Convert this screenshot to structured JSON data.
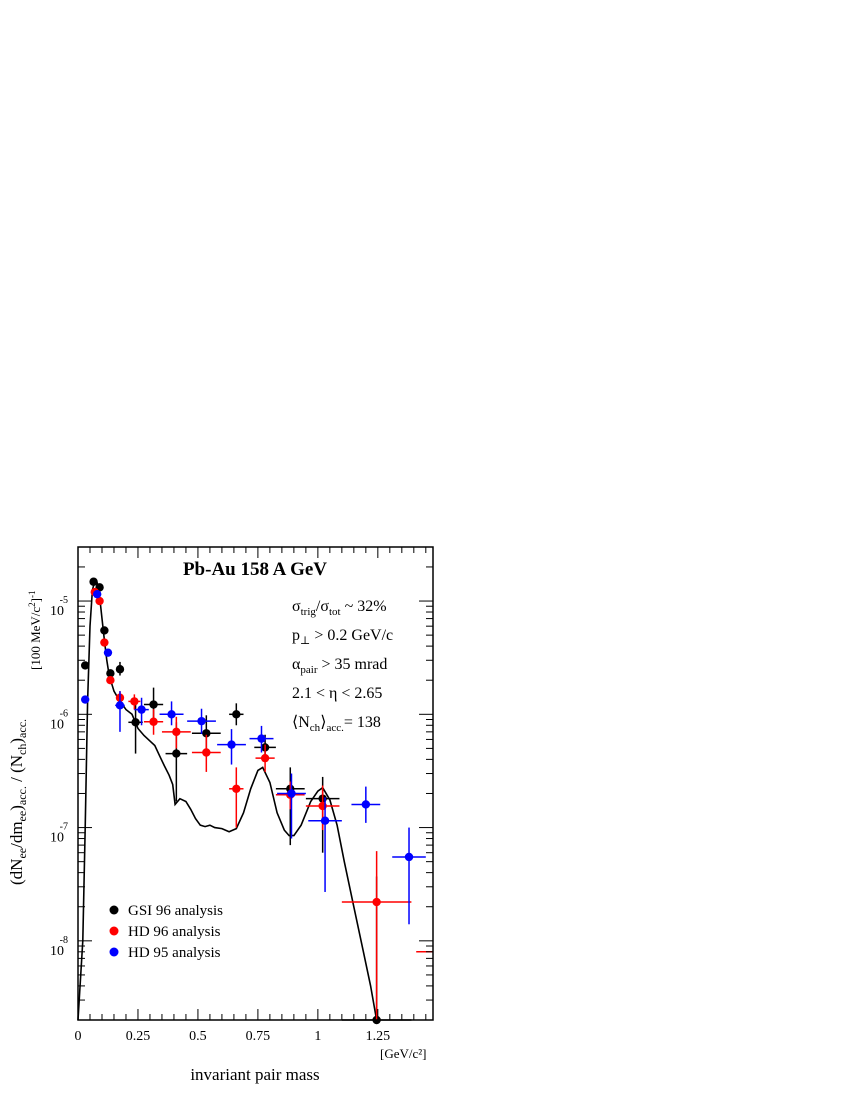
{
  "chart_data": {
    "type": "scatter",
    "title": "Pb-Au   158 A GeV",
    "xlabel": "invariant pair mass",
    "xunit": "[GeV/c²]",
    "ylabel_main": "(dN",
    "ylabel_parts": [
      "(dN",
      "ee",
      "/dm",
      "ee",
      ")",
      "acc.",
      " / (N",
      "ch",
      ")",
      "acc."
    ],
    "yunit_parts": [
      "[100 MeV/c",
      "2",
      "]",
      "-1"
    ],
    "xlim": [
      0,
      1.48
    ],
    "ylim": [
      2e-09,
      3e-05
    ],
    "yscale": "log",
    "xticks": [
      0,
      0.25,
      0.5,
      0.75,
      1,
      1.25
    ],
    "xtick_labels": [
      "0",
      "0.25",
      "0.5",
      "0.75",
      "1",
      "1.25"
    ],
    "ytick_labels": [
      {
        "base": "10",
        "exp": "-8",
        "value": 1e-08
      },
      {
        "base": "10",
        "exp": "-7",
        "value": 1e-07
      },
      {
        "base": "10",
        "exp": "-6",
        "value": 1e-06
      },
      {
        "base": "10",
        "exp": "-5",
        "value": 1e-05
      }
    ],
    "annotations": [
      {
        "parts": [
          [
            "σ",
            ""
          ],
          [
            "trig",
            "sub"
          ],
          [
            "/σ",
            ""
          ],
          [
            "tot",
            "sub"
          ],
          [
            " ~ 32%",
            ""
          ]
        ]
      },
      {
        "parts": [
          [
            "p",
            ""
          ],
          [
            "⊥",
            "sub"
          ],
          [
            " > 0.2 GeV/c",
            ""
          ]
        ]
      },
      {
        "parts": [
          [
            "α",
            ""
          ],
          [
            "pair",
            "sub"
          ],
          [
            " > 35 mrad",
            ""
          ]
        ]
      },
      {
        "parts": [
          [
            "2.1 < η < 2.65",
            ""
          ]
        ]
      },
      {
        "parts": [
          [
            "⟨N",
            ""
          ],
          [
            "ch",
            "sub"
          ],
          [
            "⟩",
            ""
          ],
          [
            "acc.",
            "sub"
          ],
          [
            "= 138",
            ""
          ]
        ]
      }
    ],
    "legend_position": "bottom-left",
    "series": [
      {
        "name": "GSI 96 analysis",
        "color": "#000000",
        "points": [
          {
            "x": 0.03,
            "y": 2.7e-06
          },
          {
            "x": 0.065,
            "y": 1.48e-05
          },
          {
            "x": 0.09,
            "y": 1.32e-05
          },
          {
            "x": 0.11,
            "y": 5.5e-06
          },
          {
            "x": 0.135,
            "y": 2.3e-06
          },
          {
            "x": 0.175,
            "y": 2.5e-06,
            "xerr": 0.015,
            "yerr": [
              3e-07,
              4e-07
            ]
          },
          {
            "x": 0.24,
            "y": 8.5e-07,
            "xerr": 0.03,
            "yerr": [
              4e-07,
              5e-07
            ]
          },
          {
            "x": 0.315,
            "y": 1.22e-06,
            "xerr": 0.04,
            "yerr": [
              4e-07,
              5e-07
            ]
          },
          {
            "x": 0.41,
            "y": 4.5e-07,
            "xerr": 0.045,
            "yerr": [
              2.8e-07,
              4e-07
            ]
          },
          {
            "x": 0.535,
            "y": 6.8e-07,
            "xerr": 0.06,
            "yerr": [
              2e-07,
              3e-07
            ]
          },
          {
            "x": 0.66,
            "y": 1e-06,
            "xerr": 0.03,
            "yerr": [
              2e-07,
              2.5e-07
            ]
          },
          {
            "x": 0.78,
            "y": 5.1e-07,
            "xerr": 0.045,
            "yerr": [
              1.2e-07,
              1.5e-07
            ]
          },
          {
            "x": 0.885,
            "y": 2.2e-07,
            "xerr": 0.06,
            "yerr": [
              1.5e-07,
              1.2e-07
            ]
          },
          {
            "x": 1.02,
            "y": 1.8e-07,
            "xerr": 0.07,
            "yerr": [
              1.2e-07,
              1e-07
            ]
          },
          {
            "x": 1.245,
            "y": 2e-09,
            "xerr": 0.145,
            "yerr": [
              0,
              3.5e-08
            ]
          }
        ]
      },
      {
        "name": "HD 96 analysis",
        "color": "#ff0000",
        "points": [
          {
            "x": 0.07,
            "y": 1.2e-05
          },
          {
            "x": 0.09,
            "y": 1e-05
          },
          {
            "x": 0.11,
            "y": 4.3e-06
          },
          {
            "x": 0.135,
            "y": 2e-06
          },
          {
            "x": 0.175,
            "y": 1.4e-06,
            "xerr": 0.015,
            "yerr": [
              2e-07,
              2e-07
            ]
          },
          {
            "x": 0.235,
            "y": 1.3e-06,
            "xerr": 0.025,
            "yerr": [
              2e-07,
              2e-07
            ]
          },
          {
            "x": 0.315,
            "y": 8.6e-07,
            "xerr": 0.04,
            "yerr": [
              2e-07,
              2.5e-07
            ]
          },
          {
            "x": 0.41,
            "y": 7e-07,
            "xerr": 0.06,
            "yerr": [
              2e-07,
              2.5e-07
            ]
          },
          {
            "x": 0.535,
            "y": 4.6e-07,
            "xerr": 0.06,
            "yerr": [
              1.5e-07,
              2e-07
            ]
          },
          {
            "x": 0.66,
            "y": 2.2e-07,
            "xerr": 0.03,
            "yerr": [
              1.2e-07,
              1.2e-07
            ]
          },
          {
            "x": 0.78,
            "y": 4.1e-07,
            "xerr": 0.04,
            "yerr": [
              1e-07,
              1.3e-07
            ]
          },
          {
            "x": 0.885,
            "y": 1.95e-07,
            "xerr": 0.06,
            "yerr": [
              5e-08,
              6e-08
            ]
          },
          {
            "x": 1.02,
            "y": 1.55e-07,
            "xerr": 0.07,
            "yerr": [
              6e-08,
              8e-08
            ]
          },
          {
            "x": 1.245,
            "y": 2.2e-08,
            "xerr": 0.145,
            "yerr": [
              2e-08,
              4e-08
            ]
          },
          {
            "x": 1.48,
            "y": 8e-09,
            "xerr": 0.07,
            "yerr": [
              0,
              0
            ]
          }
        ]
      },
      {
        "name": "HD 95 analysis",
        "color": "#0000ff",
        "points": [
          {
            "x": 0.03,
            "y": 1.35e-06,
            "xerr": 0.01
          },
          {
            "x": 0.08,
            "y": 1.15e-05
          },
          {
            "x": 0.125,
            "y": 3.5e-06
          },
          {
            "x": 0.175,
            "y": 1.2e-06,
            "xerr": 0.02,
            "yerr": [
              5e-07,
              4e-07
            ]
          },
          {
            "x": 0.265,
            "y": 1.1e-06,
            "xerr": 0.03,
            "yerr": [
              3e-07,
              3e-07
            ]
          },
          {
            "x": 0.39,
            "y": 1e-06,
            "xerr": 0.05,
            "yerr": [
              2e-07,
              3e-07
            ]
          },
          {
            "x": 0.515,
            "y": 8.7e-07,
            "xerr": 0.06,
            "yerr": [
              2e-07,
              2.5e-07
            ]
          },
          {
            "x": 0.64,
            "y": 5.4e-07,
            "xerr": 0.06,
            "yerr": [
              1.8e-07,
              2e-07
            ]
          },
          {
            "x": 0.765,
            "y": 6.1e-07,
            "xerr": 0.05,
            "yerr": [
              1.5e-07,
              1.8e-07
            ]
          },
          {
            "x": 0.89,
            "y": 2e-07,
            "xerr": 0.06,
            "yerr": [
              1.2e-07,
              1e-07
            ]
          },
          {
            "x": 1.03,
            "y": 1.15e-07,
            "xerr": 0.07,
            "yerr": [
              8.8e-08,
              7e-08
            ]
          },
          {
            "x": 1.2,
            "y": 1.6e-07,
            "xerr": 0.06,
            "yerr": [
              5e-08,
              7e-08
            ]
          },
          {
            "x": 1.38,
            "y": 5.5e-08,
            "xerr": 0.07,
            "yerr": [
              4.1e-08,
              4.5e-08
            ]
          }
        ]
      }
    ],
    "model_curve": {
      "color": "#000000",
      "points": [
        [
          0.0,
          2e-09
        ],
        [
          0.02,
          1e-08
        ],
        [
          0.03,
          1e-07
        ],
        [
          0.04,
          1.3e-06
        ],
        [
          0.05,
          6e-06
        ],
        [
          0.06,
          1.25e-05
        ],
        [
          0.07,
          1.5e-05
        ],
        [
          0.08,
          1.45e-05
        ],
        [
          0.09,
          1.1e-05
        ],
        [
          0.1,
          7e-06
        ],
        [
          0.11,
          4.5e-06
        ],
        [
          0.12,
          3e-06
        ],
        [
          0.13,
          2.2e-06
        ],
        [
          0.15,
          1.6e-06
        ],
        [
          0.17,
          1.35e-06
        ],
        [
          0.2,
          1.1e-06
        ],
        [
          0.225,
          1e-06
        ],
        [
          0.25,
          7.5e-07
        ],
        [
          0.275,
          6.5e-07
        ],
        [
          0.3,
          5.8e-07
        ],
        [
          0.32,
          5.3e-07
        ],
        [
          0.34,
          4.3e-07
        ],
        [
          0.36,
          3.5e-07
        ],
        [
          0.38,
          2.9e-07
        ],
        [
          0.395,
          2.4e-07
        ],
        [
          0.405,
          1.6e-07
        ],
        [
          0.425,
          1.8e-07
        ],
        [
          0.45,
          1.7e-07
        ],
        [
          0.47,
          1.45e-07
        ],
        [
          0.49,
          1.2e-07
        ],
        [
          0.51,
          1.05e-07
        ],
        [
          0.53,
          1.02e-07
        ],
        [
          0.55,
          1.05e-07
        ],
        [
          0.57,
          1e-07
        ],
        [
          0.6,
          9.8e-08
        ],
        [
          0.63,
          9.2e-08
        ],
        [
          0.66,
          9.8e-08
        ],
        [
          0.69,
          1.35e-07
        ],
        [
          0.72,
          2.2e-07
        ],
        [
          0.75,
          3.2e-07
        ],
        [
          0.77,
          3.4e-07
        ],
        [
          0.8,
          2.5e-07
        ],
        [
          0.83,
          1.35e-07
        ],
        [
          0.86,
          9.5e-08
        ],
        [
          0.88,
          8.5e-08
        ],
        [
          0.9,
          8.5e-08
        ],
        [
          0.93,
          1.05e-07
        ],
        [
          0.97,
          1.7e-07
        ],
        [
          1.0,
          2.1e-07
        ],
        [
          1.02,
          2.25e-07
        ],
        [
          1.05,
          1.75e-07
        ],
        [
          1.08,
          1.05e-07
        ],
        [
          1.11,
          5e-08
        ],
        [
          1.15,
          2e-08
        ],
        [
          1.19,
          8e-09
        ],
        [
          1.22,
          4e-09
        ],
        [
          1.245,
          2e-09
        ]
      ]
    }
  }
}
